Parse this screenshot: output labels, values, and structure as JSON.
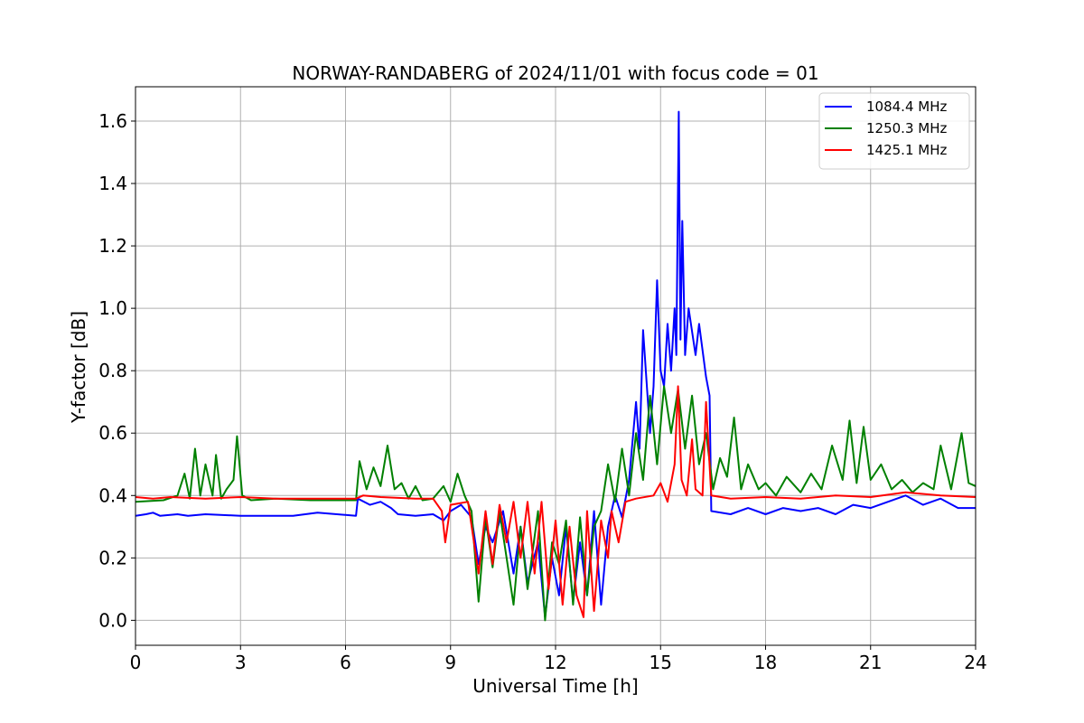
{
  "chart_data": {
    "type": "line",
    "title": "NORWAY-RANDABERG of 2024/11/01 with focus code = 01",
    "xlabel": "Universal Time [h]",
    "ylabel": "Y-factor [dB]",
    "xlim": [
      0,
      24
    ],
    "ylim": [
      -0.08,
      1.71
    ],
    "xticks": [
      0,
      3,
      6,
      9,
      12,
      15,
      18,
      21,
      24
    ],
    "xtick_labels": [
      "0",
      "3",
      "6",
      "9",
      "12",
      "15",
      "18",
      "21",
      "24"
    ],
    "yticks": [
      0.0,
      0.2,
      0.4,
      0.6,
      0.8,
      1.0,
      1.2,
      1.4,
      1.6
    ],
    "ytick_labels": [
      "0.0",
      "0.2",
      "0.4",
      "0.6",
      "0.8",
      "1.0",
      "1.2",
      "1.4",
      "1.6"
    ],
    "grid": true,
    "legend_position": "top-right",
    "series": [
      {
        "name": "1084.4 MHz",
        "color": "#0000ff",
        "points": [
          [
            0,
            0.335
          ],
          [
            0.3,
            0.34
          ],
          [
            0.5,
            0.345
          ],
          [
            0.7,
            0.335
          ],
          [
            1.2,
            0.34
          ],
          [
            1.5,
            0.335
          ],
          [
            2.0,
            0.34
          ],
          [
            3.0,
            0.335
          ],
          [
            4.5,
            0.335
          ],
          [
            5.2,
            0.345
          ],
          [
            6.3,
            0.335
          ],
          [
            6.35,
            0.39
          ],
          [
            6.7,
            0.37
          ],
          [
            7.0,
            0.38
          ],
          [
            7.3,
            0.36
          ],
          [
            7.5,
            0.34
          ],
          [
            8.0,
            0.335
          ],
          [
            8.5,
            0.34
          ],
          [
            8.8,
            0.32
          ],
          [
            9.0,
            0.35
          ],
          [
            9.3,
            0.37
          ],
          [
            9.6,
            0.33
          ],
          [
            9.8,
            0.18
          ],
          [
            10.0,
            0.3
          ],
          [
            10.2,
            0.25
          ],
          [
            10.5,
            0.35
          ],
          [
            10.8,
            0.15
          ],
          [
            11.0,
            0.3
          ],
          [
            11.2,
            0.12
          ],
          [
            11.5,
            0.25
          ],
          [
            11.7,
            0.01
          ],
          [
            11.9,
            0.2
          ],
          [
            12.1,
            0.08
          ],
          [
            12.3,
            0.3
          ],
          [
            12.5,
            0.06
          ],
          [
            12.7,
            0.25
          ],
          [
            12.9,
            0.08
          ],
          [
            13.1,
            0.35
          ],
          [
            13.3,
            0.05
          ],
          [
            13.5,
            0.3
          ],
          [
            13.7,
            0.4
          ],
          [
            13.9,
            0.33
          ],
          [
            14.1,
            0.45
          ],
          [
            14.3,
            0.7
          ],
          [
            14.4,
            0.55
          ],
          [
            14.5,
            0.93
          ],
          [
            14.7,
            0.6
          ],
          [
            14.8,
            0.75
          ],
          [
            14.9,
            1.09
          ],
          [
            15.0,
            0.8
          ],
          [
            15.1,
            0.75
          ],
          [
            15.2,
            0.95
          ],
          [
            15.3,
            0.8
          ],
          [
            15.4,
            1.0
          ],
          [
            15.45,
            0.85
          ],
          [
            15.52,
            1.63
          ],
          [
            15.57,
            0.9
          ],
          [
            15.62,
            1.28
          ],
          [
            15.7,
            0.85
          ],
          [
            15.8,
            1.0
          ],
          [
            16.0,
            0.85
          ],
          [
            16.1,
            0.95
          ],
          [
            16.3,
            0.78
          ],
          [
            16.4,
            0.72
          ],
          [
            16.45,
            0.35
          ],
          [
            17.0,
            0.34
          ],
          [
            17.5,
            0.36
          ],
          [
            18.0,
            0.34
          ],
          [
            18.5,
            0.36
          ],
          [
            19.0,
            0.35
          ],
          [
            19.5,
            0.36
          ],
          [
            20.0,
            0.34
          ],
          [
            20.5,
            0.37
          ],
          [
            21.0,
            0.36
          ],
          [
            21.5,
            0.38
          ],
          [
            22.0,
            0.4
          ],
          [
            22.5,
            0.37
          ],
          [
            23.0,
            0.39
          ],
          [
            23.5,
            0.36
          ],
          [
            24.0,
            0.36
          ]
        ]
      },
      {
        "name": "1250.3 MHz",
        "color": "#008000",
        "points": [
          [
            0,
            0.38
          ],
          [
            0.8,
            0.385
          ],
          [
            1.2,
            0.4
          ],
          [
            1.4,
            0.47
          ],
          [
            1.55,
            0.39
          ],
          [
            1.7,
            0.55
          ],
          [
            1.85,
            0.4
          ],
          [
            2.0,
            0.5
          ],
          [
            2.2,
            0.4
          ],
          [
            2.3,
            0.53
          ],
          [
            2.45,
            0.39
          ],
          [
            2.6,
            0.42
          ],
          [
            2.8,
            0.45
          ],
          [
            2.9,
            0.59
          ],
          [
            3.05,
            0.4
          ],
          [
            3.3,
            0.385
          ],
          [
            4.0,
            0.39
          ],
          [
            5.0,
            0.385
          ],
          [
            6.3,
            0.385
          ],
          [
            6.4,
            0.51
          ],
          [
            6.6,
            0.42
          ],
          [
            6.8,
            0.49
          ],
          [
            7.0,
            0.43
          ],
          [
            7.2,
            0.56
          ],
          [
            7.4,
            0.42
          ],
          [
            7.6,
            0.44
          ],
          [
            7.8,
            0.39
          ],
          [
            8.0,
            0.43
          ],
          [
            8.2,
            0.385
          ],
          [
            8.5,
            0.39
          ],
          [
            8.8,
            0.43
          ],
          [
            9.0,
            0.38
          ],
          [
            9.2,
            0.47
          ],
          [
            9.4,
            0.4
          ],
          [
            9.6,
            0.35
          ],
          [
            9.8,
            0.06
          ],
          [
            10.0,
            0.33
          ],
          [
            10.2,
            0.17
          ],
          [
            10.4,
            0.35
          ],
          [
            10.6,
            0.2
          ],
          [
            10.8,
            0.05
          ],
          [
            11.0,
            0.3
          ],
          [
            11.2,
            0.1
          ],
          [
            11.5,
            0.35
          ],
          [
            11.7,
            0.0
          ],
          [
            11.9,
            0.25
          ],
          [
            12.1,
            0.18
          ],
          [
            12.3,
            0.32
          ],
          [
            12.5,
            0.05
          ],
          [
            12.7,
            0.33
          ],
          [
            12.9,
            0.08
          ],
          [
            13.1,
            0.3
          ],
          [
            13.3,
            0.35
          ],
          [
            13.5,
            0.5
          ],
          [
            13.7,
            0.38
          ],
          [
            13.9,
            0.55
          ],
          [
            14.1,
            0.4
          ],
          [
            14.3,
            0.6
          ],
          [
            14.5,
            0.45
          ],
          [
            14.7,
            0.72
          ],
          [
            14.9,
            0.5
          ],
          [
            15.1,
            0.75
          ],
          [
            15.3,
            0.6
          ],
          [
            15.5,
            0.74
          ],
          [
            15.7,
            0.55
          ],
          [
            15.9,
            0.72
          ],
          [
            16.1,
            0.5
          ],
          [
            16.3,
            0.6
          ],
          [
            16.5,
            0.42
          ],
          [
            16.7,
            0.52
          ],
          [
            16.9,
            0.46
          ],
          [
            17.1,
            0.65
          ],
          [
            17.3,
            0.42
          ],
          [
            17.5,
            0.5
          ],
          [
            17.8,
            0.42
          ],
          [
            18.0,
            0.44
          ],
          [
            18.3,
            0.4
          ],
          [
            18.6,
            0.46
          ],
          [
            19.0,
            0.41
          ],
          [
            19.3,
            0.47
          ],
          [
            19.6,
            0.42
          ],
          [
            19.9,
            0.56
          ],
          [
            20.2,
            0.45
          ],
          [
            20.4,
            0.64
          ],
          [
            20.6,
            0.44
          ],
          [
            20.8,
            0.62
          ],
          [
            21.0,
            0.45
          ],
          [
            21.3,
            0.5
          ],
          [
            21.6,
            0.42
          ],
          [
            21.9,
            0.45
          ],
          [
            22.2,
            0.41
          ],
          [
            22.5,
            0.44
          ],
          [
            22.8,
            0.42
          ],
          [
            23.0,
            0.56
          ],
          [
            23.3,
            0.42
          ],
          [
            23.6,
            0.6
          ],
          [
            23.8,
            0.44
          ],
          [
            24.0,
            0.43
          ]
        ]
      },
      {
        "name": "1425.1 MHz",
        "color": "#ff0000",
        "points": [
          [
            0,
            0.395
          ],
          [
            0.5,
            0.39
          ],
          [
            1.0,
            0.395
          ],
          [
            2.0,
            0.39
          ],
          [
            3.0,
            0.395
          ],
          [
            4.0,
            0.39
          ],
          [
            5.0,
            0.39
          ],
          [
            6.3,
            0.39
          ],
          [
            6.5,
            0.4
          ],
          [
            7.0,
            0.395
          ],
          [
            8.0,
            0.39
          ],
          [
            8.5,
            0.39
          ],
          [
            8.75,
            0.35
          ],
          [
            8.85,
            0.25
          ],
          [
            9.0,
            0.37
          ],
          [
            9.5,
            0.38
          ],
          [
            9.8,
            0.15
          ],
          [
            10.0,
            0.35
          ],
          [
            10.2,
            0.18
          ],
          [
            10.4,
            0.37
          ],
          [
            10.6,
            0.25
          ],
          [
            10.8,
            0.38
          ],
          [
            11.0,
            0.2
          ],
          [
            11.2,
            0.38
          ],
          [
            11.4,
            0.15
          ],
          [
            11.6,
            0.38
          ],
          [
            11.8,
            0.1
          ],
          [
            12.0,
            0.32
          ],
          [
            12.2,
            0.05
          ],
          [
            12.4,
            0.3
          ],
          [
            12.6,
            0.08
          ],
          [
            12.8,
            0.01
          ],
          [
            12.9,
            0.35
          ],
          [
            13.1,
            0.03
          ],
          [
            13.3,
            0.32
          ],
          [
            13.5,
            0.2
          ],
          [
            13.6,
            0.35
          ],
          [
            13.8,
            0.25
          ],
          [
            14.0,
            0.38
          ],
          [
            14.3,
            0.39
          ],
          [
            14.8,
            0.4
          ],
          [
            15.0,
            0.44
          ],
          [
            15.2,
            0.38
          ],
          [
            15.4,
            0.5
          ],
          [
            15.5,
            0.75
          ],
          [
            15.6,
            0.45
          ],
          [
            15.75,
            0.4
          ],
          [
            15.9,
            0.58
          ],
          [
            16.0,
            0.42
          ],
          [
            16.2,
            0.4
          ],
          [
            16.3,
            0.7
          ],
          [
            16.45,
            0.4
          ],
          [
            17.0,
            0.39
          ],
          [
            18.0,
            0.395
          ],
          [
            19.0,
            0.39
          ],
          [
            20.0,
            0.4
          ],
          [
            21.0,
            0.395
          ],
          [
            22.0,
            0.41
          ],
          [
            23.0,
            0.4
          ],
          [
            24.0,
            0.395
          ]
        ]
      }
    ]
  }
}
